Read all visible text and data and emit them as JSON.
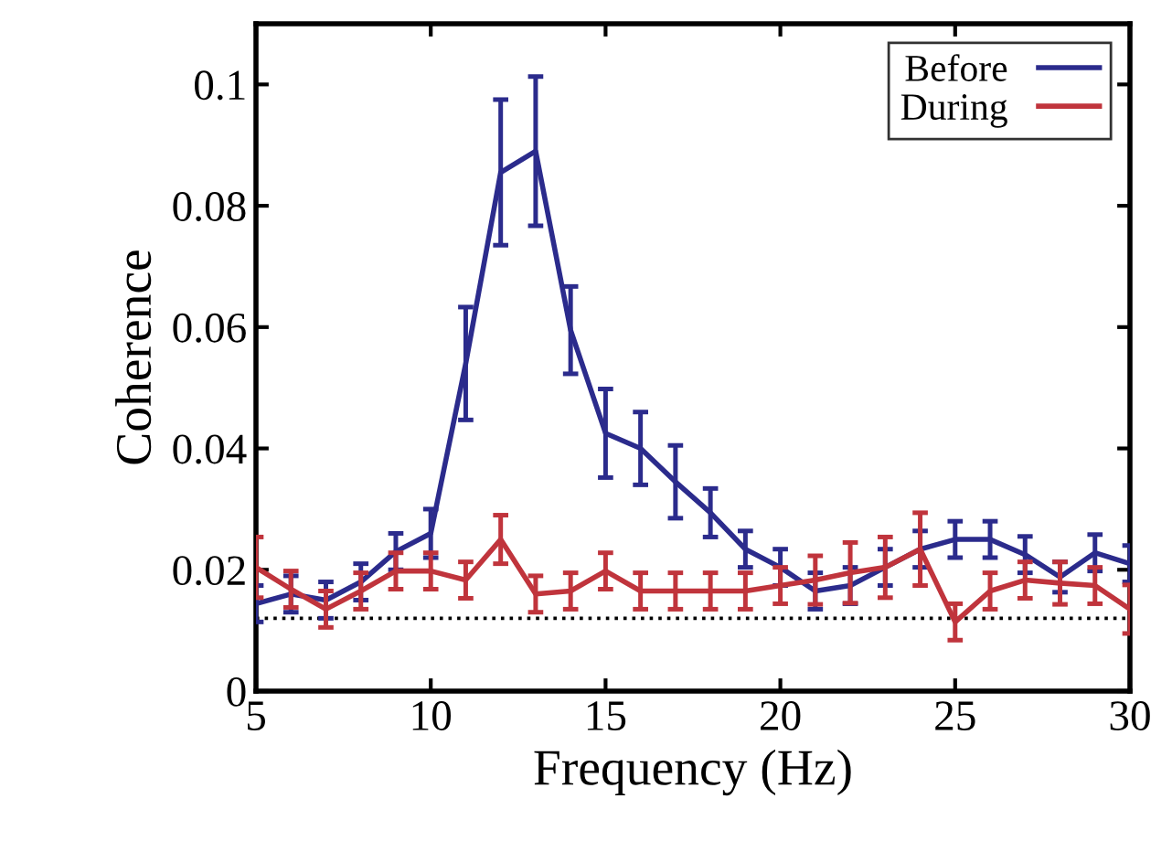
{
  "chart_data": {
    "type": "line",
    "xlabel": "Frequency (Hz)",
    "ylabel": "Coherence",
    "x": [
      5,
      6,
      7,
      8,
      9,
      10,
      11,
      12,
      13,
      14,
      15,
      16,
      17,
      18,
      19,
      20,
      21,
      22,
      23,
      24,
      25,
      26,
      27,
      28,
      29,
      30
    ],
    "series": [
      {
        "name": "Before",
        "color": "#2b2b8c",
        "values": [
          0.0144,
          0.016,
          0.015,
          0.018,
          0.023,
          0.026,
          0.054,
          0.0855,
          0.089,
          0.0595,
          0.0425,
          0.04,
          0.0345,
          0.0294,
          0.0234,
          0.0204,
          0.0165,
          0.0174,
          0.0204,
          0.0234,
          0.025,
          0.025,
          0.0225,
          0.0188,
          0.0228,
          0.021
        ],
        "errors": [
          0.003,
          0.003,
          0.003,
          0.003,
          0.003,
          0.004,
          0.0093,
          0.012,
          0.0123,
          0.0072,
          0.0073,
          0.006,
          0.006,
          0.004,
          0.003,
          0.003,
          0.003,
          0.003,
          0.003,
          0.003,
          0.003,
          0.003,
          0.003,
          0.0025,
          0.003,
          0.003
        ]
      },
      {
        "name": "During",
        "color": "#c0343c",
        "values": [
          0.0204,
          0.0168,
          0.0135,
          0.0165,
          0.0198,
          0.0198,
          0.0183,
          0.025,
          0.016,
          0.0165,
          0.0198,
          0.0165,
          0.0165,
          0.0165,
          0.0165,
          0.0174,
          0.0183,
          0.0195,
          0.0204,
          0.0234,
          0.0114,
          0.0165,
          0.0183,
          0.0178,
          0.0174,
          0.0135
        ],
        "errors": [
          0.005,
          0.003,
          0.003,
          0.003,
          0.003,
          0.003,
          0.003,
          0.004,
          0.003,
          0.003,
          0.003,
          0.003,
          0.003,
          0.003,
          0.003,
          0.003,
          0.004,
          0.005,
          0.005,
          0.006,
          0.003,
          0.003,
          0.003,
          0.0035,
          0.003,
          0.004
        ]
      }
    ],
    "ref_lines": [
      {
        "axis": "y",
        "value": 0.012,
        "color": "#000000",
        "line_style": "dotted"
      }
    ],
    "xlim": [
      5,
      30
    ],
    "xticks": [
      5,
      10,
      15,
      20,
      25,
      30
    ],
    "ylim": [
      0,
      0.11
    ],
    "yticks": [
      0,
      0.02,
      0.04,
      0.06,
      0.08,
      0.1
    ],
    "grid": false,
    "legend": "top right",
    "marker": "none",
    "line_style": "solid"
  }
}
